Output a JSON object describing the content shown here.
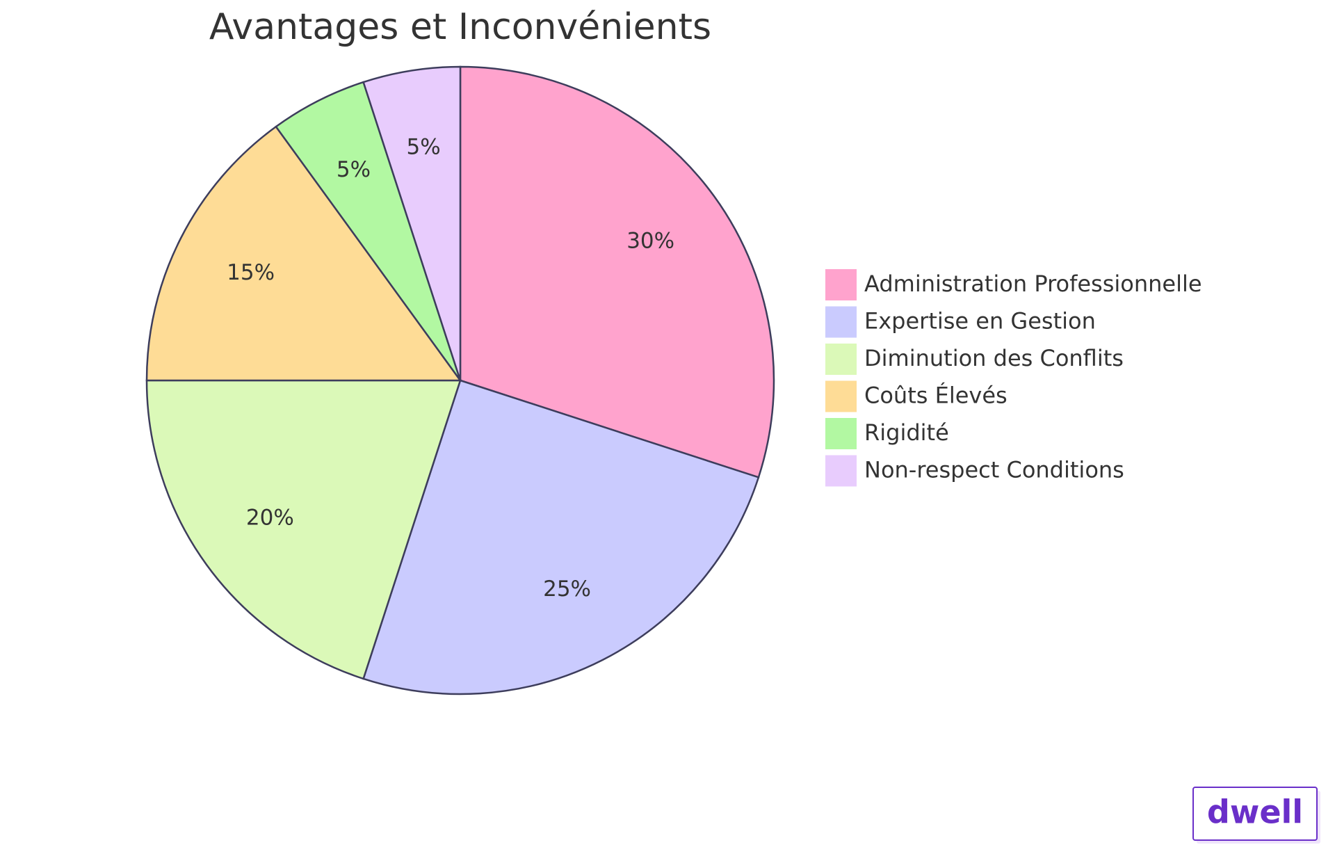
{
  "chart_data": {
    "type": "pie",
    "title": "Avantages et Inconvénients",
    "categories": [
      "Administration Professionnelle",
      "Expertise en Gestion",
      "Diminution des Conflits",
      "Coûts Élevés",
      "Rigidité",
      "Non-respect Conditions"
    ],
    "values": [
      30,
      25,
      20,
      15,
      5,
      5
    ],
    "value_labels": [
      "30%",
      "25%",
      "20%",
      "15%",
      "5%",
      "5%"
    ],
    "colors": [
      "#ffa3cd",
      "#cacbfe",
      "#dbf9b8",
      "#fedc96",
      "#b2f8a2",
      "#e8ccfd"
    ],
    "legend": "right"
  },
  "watermark": "dwell"
}
